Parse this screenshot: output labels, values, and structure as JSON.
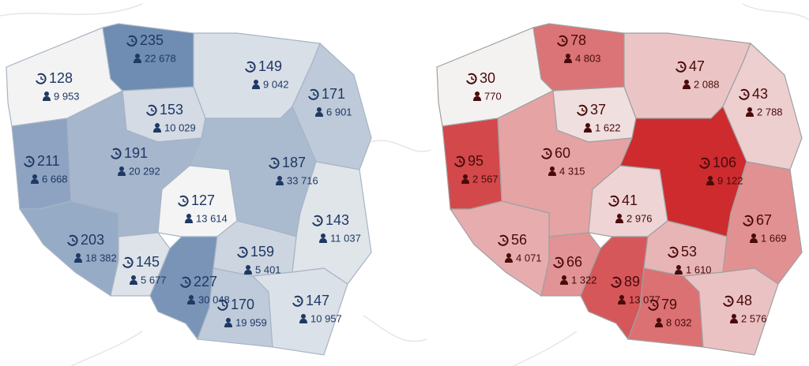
{
  "maps": [
    {
      "low_color": "#f4f4f4",
      "high_color": "#6f8cb2",
      "text_color": "#1f3864",
      "border_color": "#a8b4c4",
      "regions": [
        {
          "value": 128,
          "count": "9 953"
        },
        {
          "value": 235,
          "count": "22 678"
        },
        {
          "value": 149,
          "count": "9 042"
        },
        {
          "value": 171,
          "count": "6 901"
        },
        {
          "value": 153,
          "count": "10 029"
        },
        {
          "value": 211,
          "count": "6 668"
        },
        {
          "value": 191,
          "count": "20 292"
        },
        {
          "value": 187,
          "count": "33 716"
        },
        {
          "value": 127,
          "count": "13 614"
        },
        {
          "value": 143,
          "count": "11 037"
        },
        {
          "value": 203,
          "count": "18 382"
        },
        {
          "value": 145,
          "count": "5 677"
        },
        {
          "value": 227,
          "count": "30 048"
        },
        {
          "value": 159,
          "count": "5 401"
        },
        {
          "value": 170,
          "count": "19 959"
        },
        {
          "value": 147,
          "count": "10 957"
        }
      ]
    },
    {
      "low_color": "#f4f1f1",
      "high_color": "#cd2b2e",
      "text_color": "#4a0a0a",
      "border_color": "#a0a0a0",
      "regions": [
        {
          "value": 30,
          "count": "770"
        },
        {
          "value": 78,
          "count": "4 803"
        },
        {
          "value": 47,
          "count": "2 088"
        },
        {
          "value": 43,
          "count": "2 788"
        },
        {
          "value": 37,
          "count": "1 622"
        },
        {
          "value": 95,
          "count": "2 567"
        },
        {
          "value": 60,
          "count": "4 315"
        },
        {
          "value": 106,
          "count": "9 122"
        },
        {
          "value": 41,
          "count": "2 976"
        },
        {
          "value": 67,
          "count": "1 669"
        },
        {
          "value": 56,
          "count": "4 071"
        },
        {
          "value": 66,
          "count": "1 322"
        },
        {
          "value": 89,
          "count": "13 077"
        },
        {
          "value": 53,
          "count": "1 610"
        },
        {
          "value": 79,
          "count": "8 032"
        },
        {
          "value": 48,
          "count": "2 576"
        }
      ]
    }
  ]
}
